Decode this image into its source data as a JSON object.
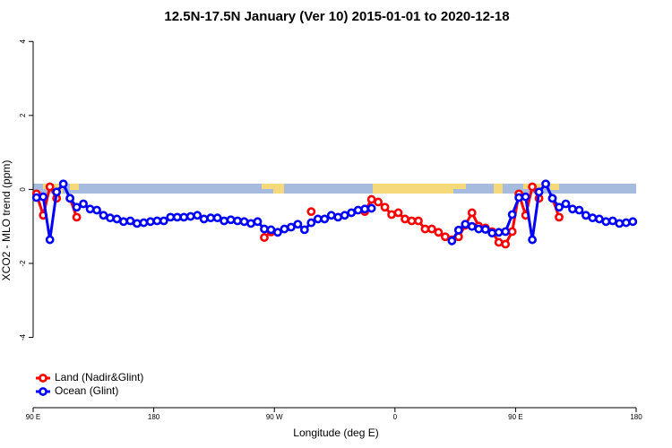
{
  "chart_data": {
    "type": "line",
    "title": "12.5N-17.5N January (Ver 10)   2015-01-01 to 2020-12-18",
    "x_label": "Longitude (deg E)",
    "y_label": "XCO2 - MLO trend (ppm)",
    "x": [
      92.5,
      97.5,
      102.5,
      107.5,
      112.5,
      117.5,
      122.5,
      127.5,
      132.5,
      137.5,
      142.5,
      147.5,
      152.5,
      157.5,
      162.5,
      167.5,
      172.5,
      177.5,
      182.5,
      187.5,
      192.5,
      197.5,
      202.5,
      207.5,
      212.5,
      217.5,
      222.5,
      227.5,
      232.5,
      237.5,
      242.5,
      247.5,
      252.5,
      257.5,
      262.5,
      267.5,
      272.5,
      277.5,
      282.5,
      287.5,
      292.5,
      297.5,
      302.5,
      307.5,
      312.5,
      317.5,
      322.5,
      327.5,
      332.5,
      337.5,
      342.5,
      347.5,
      352.5,
      357.5,
      362.5,
      367.5,
      372.5,
      377.5,
      382.5,
      387.5,
      392.5,
      397.5,
      402.5,
      407.5,
      412.5,
      417.5,
      422.5,
      427.5,
      432.5,
      437.5,
      442.5,
      447.5,
      452.5,
      457.5,
      462.5,
      467.5,
      472.5,
      477.5,
      482.5,
      487.5,
      492.5,
      497.5,
      502.5,
      507.5,
      512.5,
      517.5,
      522.5,
      527.5,
      532.5,
      537.5
    ],
    "series": [
      {
        "name": "Land (Nadir&Glint)",
        "color": "#ff0000",
        "values": [
          -0.12,
          -0.7,
          0.07,
          -0.24,
          null,
          -0.24,
          -0.75,
          null,
          null,
          null,
          null,
          null,
          null,
          null,
          null,
          null,
          null,
          null,
          null,
          null,
          null,
          null,
          null,
          null,
          null,
          null,
          null,
          null,
          null,
          null,
          null,
          null,
          null,
          null,
          -1.3,
          -1.15,
          null,
          null,
          null,
          null,
          null,
          -0.6,
          null,
          null,
          null,
          null,
          null,
          null,
          null,
          -0.6,
          -0.27,
          -0.34,
          -0.48,
          -0.68,
          -0.63,
          -0.8,
          -0.85,
          -0.85,
          -1.07,
          -1.07,
          -1.16,
          -1.28,
          -1.36,
          -1.28,
          -0.97,
          -0.63,
          -0.99,
          -1.04,
          -1.14,
          -1.43,
          -1.48,
          -1.14,
          -0.12,
          -0.7,
          0.07,
          -0.24,
          null,
          -0.24,
          -0.75,
          null,
          null,
          null,
          null,
          null,
          null,
          null,
          null,
          null,
          null,
          null
        ]
      },
      {
        "name": "Ocean (Glint)",
        "color": "#0000ff",
        "values": [
          -0.22,
          -0.2,
          -1.36,
          -0.07,
          0.15,
          -0.24,
          -0.48,
          -0.39,
          -0.53,
          -0.56,
          -0.7,
          -0.77,
          -0.8,
          -0.87,
          -0.85,
          -0.92,
          -0.9,
          -0.87,
          -0.85,
          -0.85,
          -0.75,
          -0.75,
          -0.75,
          -0.73,
          -0.7,
          -0.8,
          -0.77,
          -0.77,
          -0.85,
          -0.82,
          -0.85,
          -0.87,
          -0.92,
          -0.87,
          -1.07,
          -1.09,
          -1.16,
          -1.07,
          -1.02,
          -0.94,
          -1.09,
          -0.9,
          -0.8,
          -0.8,
          -0.7,
          -0.75,
          -0.7,
          -0.63,
          -0.56,
          -0.53,
          -0.51,
          null,
          null,
          null,
          null,
          null,
          null,
          null,
          null,
          null,
          null,
          null,
          -1.39,
          -1.1,
          -0.94,
          -1.0,
          -1.07,
          -1.08,
          -1.18,
          -1.16,
          -1.14,
          -0.68,
          -0.22,
          -0.2,
          -1.36,
          -0.07,
          0.15,
          -0.24,
          -0.48,
          -0.39,
          -0.53,
          -0.56,
          -0.7,
          -0.77,
          -0.8,
          -0.87,
          -0.85,
          -0.92,
          -0.9,
          -0.87
        ]
      }
    ],
    "xlim": [
      90,
      540
    ],
    "xticks": [
      {
        "value": 90,
        "label": "90 E"
      },
      180,
      {
        "value": 270,
        "label": "90 W"
      },
      {
        "value": 360,
        "label": "0"
      },
      {
        "value": 450,
        "label": "90 E"
      },
      {
        "value": 540,
        "label": "180"
      }
    ],
    "ylim": [
      -5.9,
      4.2
    ],
    "yticks": [
      -4,
      -2,
      0,
      2,
      4
    ],
    "legend": "bottom-left"
  }
}
